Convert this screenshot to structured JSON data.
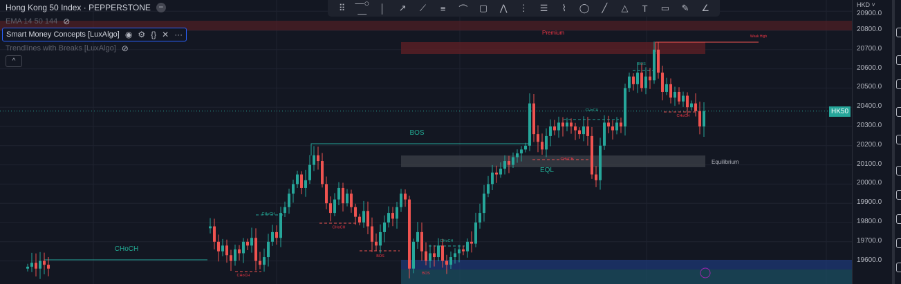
{
  "header": {
    "title": "Hong Kong 50 Index · PEPPERSTONE"
  },
  "indicators": [
    {
      "label": "EMA 14 50 144",
      "visible": false
    },
    {
      "label": "Smart Money Concepts [LuxAlgo]",
      "visible": true,
      "selected": true
    },
    {
      "label": "Trendlines with Breaks [LuxAlgo]",
      "visible": false
    }
  ],
  "drawing_toolbar": {
    "icons": [
      "drag-handle-icon",
      "horizontal-ray-icon",
      "vertical-line-icon",
      "trend-angle-icon",
      "parallel-channel-icon",
      "horizontal-lines-icon",
      "fib-fan-icon",
      "rectangle-icon",
      "pitchfork-icon",
      "gann-box-icon",
      "fib-retracement-icon",
      "polyline-icon",
      "ellipse-icon",
      "line-icon",
      "triangle-icon",
      "text-icon",
      "callout-icon",
      "brush-icon",
      "angle-icon"
    ]
  },
  "axis": {
    "currency": "HKD",
    "ticks": [
      "20900.0",
      "20800.0",
      "20700.0",
      "20600.0",
      "20500.0",
      "20400.0",
      "20300.0",
      "20200.0",
      "20100.0",
      "20000.0",
      "19900.0",
      "19800.0",
      "19700.0",
      "19600.0"
    ],
    "symbol_badge": "HK50",
    "last_price": 20380
  },
  "annotations": {
    "premium": "Premium",
    "weak_high": "Weak High",
    "equilibrium": "Equilibrium",
    "eql": "EQL",
    "bos_main": "BOS",
    "choch_main": "CHoCH",
    "small": [
      {
        "text": "CHoCH",
        "color": "teal",
        "price": 19840,
        "i": 58
      },
      {
        "text": "CHoCH",
        "color": "red",
        "price": 19770,
        "i": 75
      },
      {
        "text": "BOS",
        "color": "red",
        "price": 19620,
        "i": 85
      },
      {
        "text": "CHoCH",
        "color": "red",
        "price": 19520,
        "i": 52
      },
      {
        "text": "CHoCH",
        "color": "teal",
        "price": 19700,
        "i": 101
      },
      {
        "text": "BOS",
        "color": "red",
        "price": 19530,
        "i": 96
      },
      {
        "text": "CHoCH",
        "color": "teal",
        "price": 20380,
        "i": 136
      },
      {
        "text": "BOS",
        "color": "teal",
        "price": 20620,
        "i": 148
      },
      {
        "text": "CHoCH",
        "color": "red",
        "price": 20350,
        "i": 158
      },
      {
        "text": "CHoCH",
        "color": "red",
        "price": 20125,
        "i": 130
      }
    ]
  },
  "colors": {
    "up": "#26a69a",
    "down": "#ef5350",
    "bg": "#131722",
    "premium": "#5c1f25",
    "discount": "#1e3a7a",
    "equilibrium": "#3a3d46"
  },
  "chart_data": {
    "type": "candlestick",
    "symbol": "HK50",
    "ylim": [
      19500,
      20930
    ],
    "closes": [
      19570,
      19590,
      19560,
      19600,
      19580,
      19560,
      null,
      null,
      null,
      null,
      null,
      null,
      null,
      null,
      null,
      null,
      null,
      null,
      null,
      null,
      null,
      null,
      null,
      null,
      null,
      null,
      null,
      null,
      null,
      null,
      null,
      null,
      null,
      null,
      null,
      null,
      null,
      null,
      null,
      null,
      null,
      null,
      null,
      null,
      19780,
      19700,
      19650,
      19680,
      19630,
      19600,
      19660,
      19640,
      19700,
      19680,
      19720,
      19600,
      19580,
      19620,
      19700,
      19750,
      19720,
      19850,
      19880,
      19950,
      20000,
      20050,
      19980,
      20020,
      20100,
      20150,
      20120,
      20000,
      19900,
      19850,
      19920,
      19980,
      19900,
      19950,
      19880,
      19830,
      19800,
      19860,
      19780,
      19700,
      19680,
      19750,
      19800,
      19850,
      19820,
      19880,
      19950,
      19920,
      19560,
      19700,
      19750,
      19650,
      19600,
      19640,
      19620,
      19680,
      19600,
      19580,
      19620,
      19640,
      19660,
      19650,
      19700,
      19690,
      19800,
      19850,
      19950,
      20000,
      20060,
      20050,
      20080,
      20120,
      20100,
      20140,
      20160,
      20180,
      20200,
      20420,
      20260,
      20220,
      20180,
      20250,
      20300,
      20280,
      20320,
      20300,
      20320,
      20300,
      20280,
      20260,
      20300,
      20250,
      20050,
      20020,
      20200,
      20320,
      20300,
      20280,
      20320,
      20300,
      20500,
      20560,
      20520,
      20580,
      20500,
      20560,
      20540,
      20700,
      20580,
      20480,
      20520,
      20450,
      20480,
      20430,
      20460,
      20400,
      20420,
      20380,
      20300,
      20380
    ]
  }
}
